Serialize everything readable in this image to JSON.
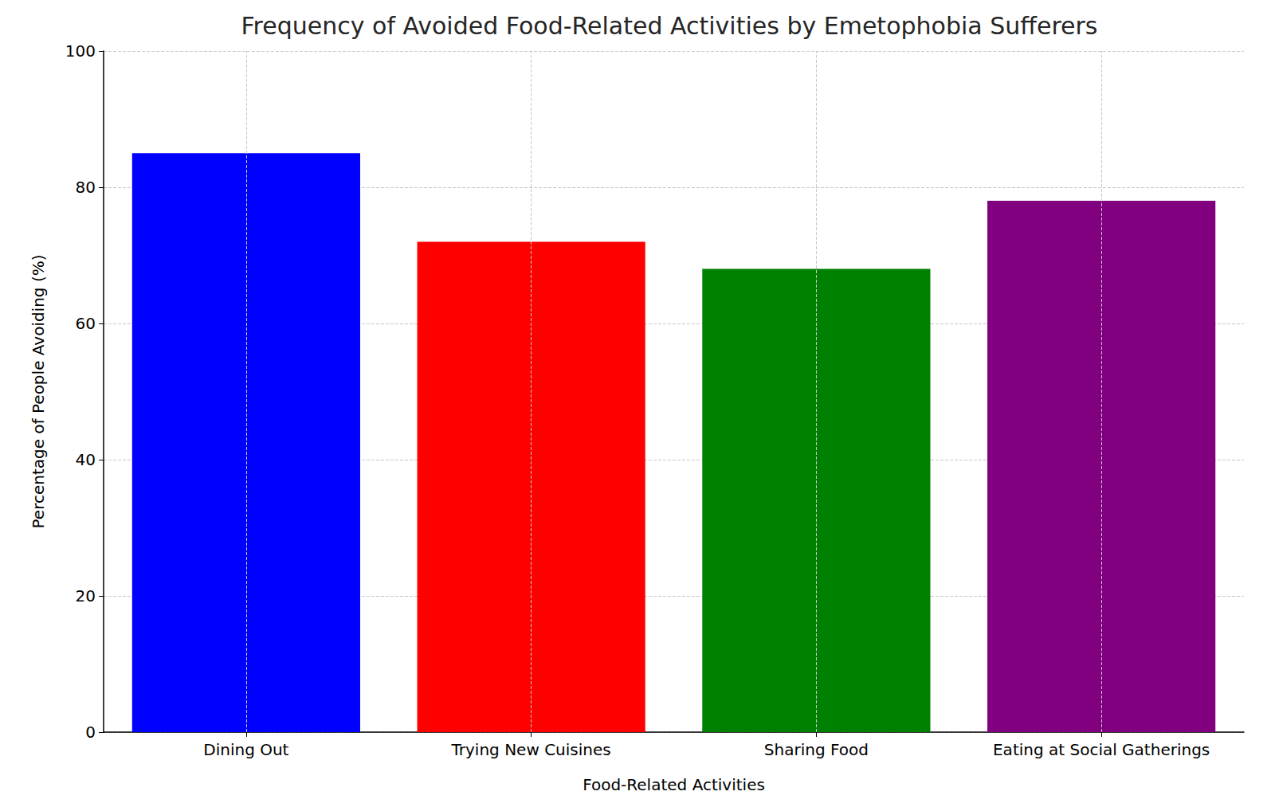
{
  "chart_data": {
    "type": "bar",
    "title": "Frequency of Avoided Food-Related Activities by Emetophobia Sufferers",
    "x_label": "Food-Related Activities",
    "y_label": "Percentage of People Avoiding (%)",
    "categories": [
      "Dining Out",
      "Trying New Cuisines",
      "Sharing Food",
      "Eating at Social Gatherings"
    ],
    "values": [
      85,
      72,
      68,
      78
    ],
    "colors": [
      "#0000ff",
      "#ff0000",
      "#008000",
      "#800080"
    ],
    "ylim": [
      0,
      100
    ],
    "yticks": [
      0,
      20,
      40,
      60,
      80,
      100
    ],
    "grid": true
  }
}
